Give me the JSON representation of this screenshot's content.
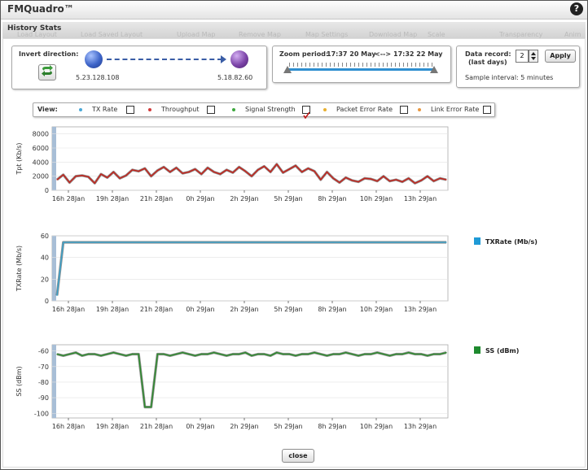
{
  "window": {
    "title": "FMQuadro™",
    "help_icon": "question-icon"
  },
  "tabs": {
    "active": "History Stats",
    "background": [
      "Load Layout",
      "Load Saved Layout",
      "Upload Map",
      "Remove Map",
      "Map Settings",
      "Download Map",
      "Scale",
      "Transparency",
      "Anim"
    ]
  },
  "invert_panel": {
    "label": "Invert direction:",
    "source_ip": "5.23.128.108",
    "dest_ip": "5.18.82.60",
    "source_color": "#3d64c8",
    "dest_color": "#7c44a8"
  },
  "zoom_panel": {
    "label": "Zoom period:",
    "from": "17:37  20 May",
    "separator": "<-->",
    "to": "17:32  22 May"
  },
  "record_panel": {
    "label_line1": "Data record:",
    "label_line2": "(last days)",
    "days_value": "2",
    "apply_label": "Apply",
    "sample_interval": "Sample interval:  5 minutes"
  },
  "view_bar": {
    "label": "View:",
    "items": [
      {
        "label": "TX Rate",
        "color": "#4aa8d8",
        "checked": false
      },
      {
        "label": "Throughput",
        "color": "#d23a3a",
        "checked": false
      },
      {
        "label": "Signal Strength",
        "color": "#3ea83e",
        "checked": true
      },
      {
        "label": "Packet Error Rate",
        "color": "#e8b030",
        "checked": false
      },
      {
        "label": "Link Error Rate",
        "color": "#e89840",
        "checked": false
      }
    ]
  },
  "close_label": "close",
  "chart_data": [
    {
      "type": "line",
      "ylabel": "Tpt (Kb/s)",
      "ylim": [
        0,
        9000
      ],
      "yticks": [
        0,
        2000,
        4000,
        6000,
        8000
      ],
      "xticks": [
        "16h 28Jan",
        "19h 28Jan",
        "21h 28Jan",
        "0h 29Jan",
        "2h 29Jan",
        "5h 29Jan",
        "8h 29Jan",
        "10h 29Jan",
        "13h 29Jan"
      ],
      "line_color": "#c0261e",
      "series": [
        {
          "values": [
            1500,
            2200,
            1100,
            2000,
            2100,
            1900,
            1000,
            2300,
            1800,
            2600,
            1700,
            2100,
            2900,
            2700,
            3100,
            2000,
            2800,
            3300,
            2600,
            3200,
            2400,
            2600,
            3000,
            2300,
            3200,
            2600,
            2300,
            2900,
            2500,
            3300,
            2700,
            2000,
            2900,
            3400,
            2600,
            3700,
            2500,
            3000,
            3500,
            2600,
            3100,
            2700,
            1500,
            2600,
            1700,
            1100,
            1800,
            1400,
            1200,
            1700,
            1600,
            1300,
            2000,
            1300,
            1500,
            1200,
            1700,
            1000,
            1400,
            2000,
            1300,
            1700,
            1500
          ]
        }
      ]
    },
    {
      "type": "line",
      "ylabel": "TXRate (Mb/s)",
      "ylim": [
        0,
        60
      ],
      "yticks": [
        0,
        20,
        40,
        60
      ],
      "xticks": [
        "16h 28Jan",
        "19h 28Jan",
        "21h 28Jan",
        "0h 29Jan",
        "2h 29Jan",
        "5h 29Jan",
        "8h 29Jan",
        "10h 29Jan",
        "13h 29Jan"
      ],
      "line_color": "#3aa0c8",
      "legend": {
        "label": "TXRate (Mb/s)",
        "color": "#1f9ad6"
      },
      "series": [
        {
          "values": [
            5,
            54,
            54,
            54,
            54,
            54,
            54,
            54,
            54,
            54,
            54,
            54,
            54,
            54,
            54,
            54,
            54,
            54,
            54,
            54,
            54,
            54,
            54,
            54,
            54,
            54,
            54,
            54,
            54,
            54,
            54,
            54,
            54,
            54,
            54,
            54,
            54,
            54,
            54,
            54,
            54,
            54,
            54,
            54,
            54,
            54,
            54,
            54,
            54,
            54,
            54,
            54,
            54,
            54,
            54,
            54,
            54,
            54,
            54,
            54,
            54,
            54,
            54
          ]
        }
      ]
    },
    {
      "type": "line",
      "ylabel": "SS (dBm)",
      "ylim": [
        -103,
        -56
      ],
      "yticks": [
        -100,
        -90,
        -80,
        -70,
        -60
      ],
      "xticks": [
        "16h 28Jan",
        "19h 28Jan",
        "21h 28Jan",
        "0h 29Jan",
        "2h 29Jan",
        "5h 29Jan",
        "8h 29Jan",
        "10h 29Jan",
        "13h 29Jan"
      ],
      "line_color": "#2e8a2e",
      "legend": {
        "label": "SS (dBm)",
        "color": "#1e8a2e"
      },
      "series": [
        {
          "values": [
            -62,
            -63,
            -62,
            -61,
            -63,
            -62,
            -62,
            -63,
            -62,
            -61,
            -62,
            -63,
            -62,
            -62,
            -96,
            -96,
            -62,
            -62,
            -63,
            -62,
            -61,
            -62,
            -63,
            -62,
            -62,
            -61,
            -62,
            -63,
            -62,
            -62,
            -61,
            -63,
            -62,
            -62,
            -63,
            -61,
            -62,
            -62,
            -63,
            -62,
            -62,
            -61,
            -62,
            -63,
            -62,
            -62,
            -61,
            -62,
            -63,
            -62,
            -62,
            -61,
            -62,
            -63,
            -62,
            -62,
            -61,
            -62,
            -62,
            -63,
            -62,
            -62,
            -61
          ]
        }
      ]
    }
  ]
}
